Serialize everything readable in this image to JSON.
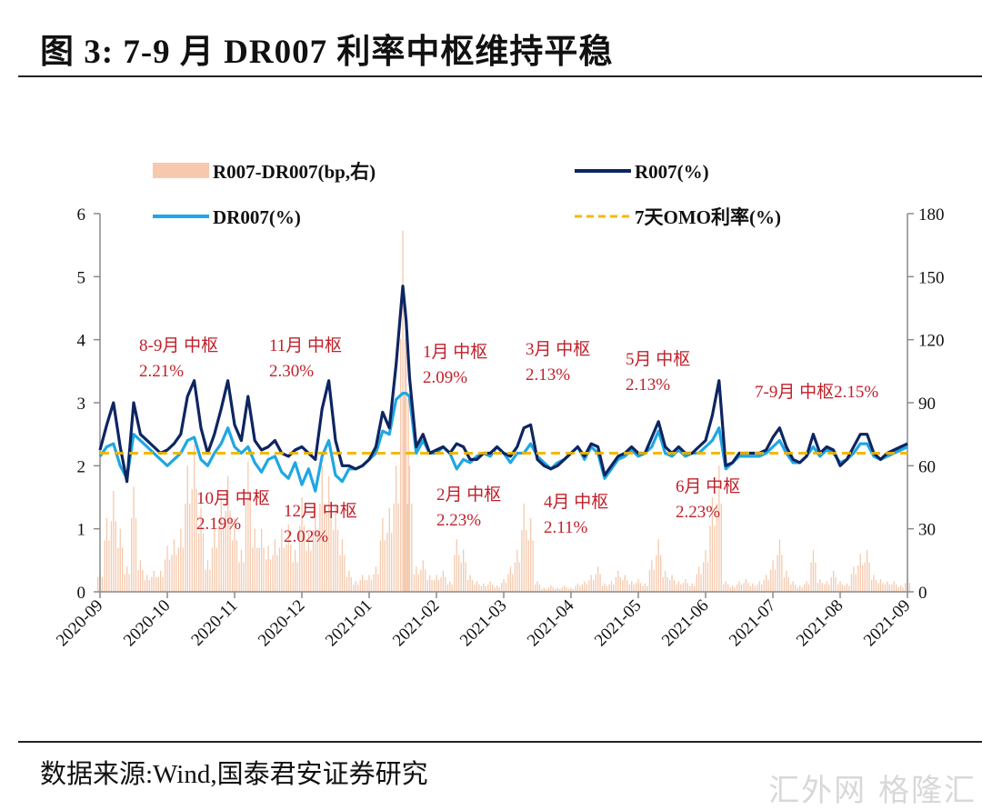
{
  "figure": {
    "title": "图 3:  7-9 月 DR007 利率中枢维持平稳",
    "source": "数据来源:Wind,国泰君安证券研究",
    "watermark": "汇外网 格隆汇"
  },
  "chart_data": {
    "type": "line",
    "title": "7-9 月 DR007 利率中枢维持平稳",
    "xlabel": "",
    "ylabel": "",
    "y_left": {
      "range": [
        0,
        6
      ],
      "ticks": [
        0,
        1,
        2,
        3,
        4,
        5,
        6
      ],
      "unit": "%"
    },
    "y_right": {
      "range": [
        0,
        180
      ],
      "ticks": [
        0,
        30,
        60,
        90,
        120,
        150,
        180
      ],
      "unit": "bp"
    },
    "x_ticks": [
      "2020-09",
      "2020-10",
      "2020-11",
      "2020-12",
      "2021-01",
      "2021-02",
      "2021-03",
      "2021-04",
      "2021-05",
      "2021-06",
      "2021-07",
      "2021-08",
      "2021-09"
    ],
    "grid": false,
    "legend": {
      "position": "top",
      "entries": [
        {
          "label": "R007-DR007(bp,右)",
          "type": "bar",
          "color": "#f6c9ad"
        },
        {
          "label": "R007(%)",
          "type": "line",
          "color": "#0d2561"
        },
        {
          "label": "DR007(%)",
          "type": "line",
          "color": "#1fa7e3"
        },
        {
          "label": "7天OMO利率(%)",
          "type": "dashed-line",
          "color": "#f5b800"
        }
      ]
    },
    "x_month_index": [
      0,
      0.1,
      0.2,
      0.3,
      0.4,
      0.5,
      0.6,
      0.7,
      0.8,
      0.9,
      1.0,
      1.1,
      1.2,
      1.3,
      1.4,
      1.5,
      1.6,
      1.7,
      1.8,
      1.9,
      2.0,
      2.1,
      2.2,
      2.3,
      2.4,
      2.5,
      2.6,
      2.7,
      2.8,
      2.9,
      3.0,
      3.1,
      3.2,
      3.3,
      3.4,
      3.5,
      3.6,
      3.7,
      3.8,
      3.9,
      4.0,
      4.1,
      4.2,
      4.3,
      4.4,
      4.5,
      4.55,
      4.6,
      4.7,
      4.8,
      4.9,
      5.0,
      5.1,
      5.2,
      5.3,
      5.4,
      5.5,
      5.6,
      5.7,
      5.8,
      5.9,
      6.0,
      6.1,
      6.2,
      6.3,
      6.4,
      6.5,
      6.6,
      6.7,
      6.8,
      6.9,
      7.0,
      7.1,
      7.2,
      7.3,
      7.4,
      7.5,
      7.6,
      7.7,
      7.8,
      7.9,
      8.0,
      8.1,
      8.2,
      8.3,
      8.4,
      8.5,
      8.6,
      8.7,
      8.8,
      8.9,
      9.0,
      9.1,
      9.2,
      9.3,
      9.4,
      9.5,
      9.6,
      9.7,
      9.8,
      9.9,
      10.0,
      10.1,
      10.2,
      10.3,
      10.4,
      10.5,
      10.6,
      10.7,
      10.8,
      10.9,
      11.0,
      11.1,
      11.2,
      11.3,
      11.4,
      11.5,
      11.6,
      11.7,
      11.8,
      11.9,
      12.0
    ],
    "series": [
      {
        "name": "R007(%)",
        "axis": "left",
        "values": [
          2.25,
          2.65,
          3.0,
          2.3,
          1.75,
          3.0,
          2.5,
          2.4,
          2.3,
          2.2,
          2.25,
          2.35,
          2.5,
          3.1,
          3.35,
          2.6,
          2.2,
          2.5,
          2.9,
          3.35,
          2.65,
          2.4,
          3.1,
          2.4,
          2.25,
          2.3,
          2.4,
          2.2,
          2.15,
          2.25,
          2.3,
          2.2,
          2.1,
          2.9,
          3.35,
          2.4,
          2.0,
          2.0,
          1.95,
          2.0,
          2.1,
          2.3,
          2.85,
          2.6,
          3.6,
          4.85,
          4.3,
          3.4,
          2.3,
          2.5,
          2.2,
          2.25,
          2.3,
          2.2,
          2.35,
          2.3,
          2.1,
          2.1,
          2.2,
          2.2,
          2.3,
          2.2,
          2.15,
          2.3,
          2.6,
          2.65,
          2.1,
          2.0,
          1.95,
          2.0,
          2.1,
          2.2,
          2.3,
          2.15,
          2.35,
          2.3,
          1.85,
          2.0,
          2.15,
          2.2,
          2.3,
          2.2,
          2.2,
          2.45,
          2.7,
          2.3,
          2.2,
          2.3,
          2.2,
          2.2,
          2.3,
          2.4,
          2.8,
          3.35,
          2.0,
          2.05,
          2.2,
          2.2,
          2.2,
          2.2,
          2.25,
          2.45,
          2.6,
          2.3,
          2.1,
          2.05,
          2.15,
          2.5,
          2.2,
          2.3,
          2.25,
          2.0,
          2.1,
          2.3,
          2.5,
          2.5,
          2.2,
          2.1,
          2.2,
          2.25,
          2.3,
          2.35
        ]
      },
      {
        "name": "DR007(%)",
        "axis": "left",
        "values": [
          2.15,
          2.3,
          2.35,
          2.0,
          1.8,
          2.5,
          2.4,
          2.3,
          2.2,
          2.1,
          2.0,
          2.1,
          2.2,
          2.4,
          2.45,
          2.1,
          2.0,
          2.2,
          2.35,
          2.6,
          2.3,
          2.2,
          2.3,
          2.05,
          1.9,
          2.1,
          2.15,
          1.9,
          1.8,
          2.05,
          1.7,
          1.95,
          1.6,
          2.15,
          2.4,
          1.85,
          1.75,
          1.95,
          1.95,
          2.0,
          2.1,
          2.2,
          2.55,
          2.5,
          3.05,
          3.15,
          3.15,
          3.1,
          2.2,
          2.4,
          2.2,
          2.2,
          2.3,
          2.2,
          1.95,
          2.1,
          2.05,
          2.15,
          2.2,
          2.15,
          2.3,
          2.2,
          2.05,
          2.2,
          2.2,
          2.35,
          2.15,
          2.05,
          1.95,
          2.05,
          2.1,
          2.2,
          2.3,
          2.1,
          2.3,
          2.2,
          1.8,
          1.95,
          2.1,
          2.15,
          2.25,
          2.15,
          2.2,
          2.3,
          2.55,
          2.2,
          2.15,
          2.25,
          2.15,
          2.2,
          2.2,
          2.3,
          2.4,
          2.6,
          1.95,
          2.05,
          2.15,
          2.15,
          2.15,
          2.15,
          2.2,
          2.3,
          2.4,
          2.2,
          2.05,
          2.05,
          2.15,
          2.3,
          2.15,
          2.25,
          2.2,
          2.05,
          2.1,
          2.2,
          2.35,
          2.35,
          2.15,
          2.1,
          2.15,
          2.2,
          2.25,
          2.3
        ]
      },
      {
        "name": "7天OMO利率(%)",
        "axis": "left",
        "constant": 2.2
      },
      {
        "name": "R007-DR007(bp,右)",
        "axis": "right",
        "values": [
          10,
          35,
          48,
          30,
          12,
          50,
          15,
          8,
          10,
          10,
          22,
          25,
          30,
          60,
          70,
          40,
          15,
          30,
          45,
          55,
          35,
          20,
          62,
          30,
          30,
          22,
          25,
          30,
          32,
          20,
          45,
          28,
          42,
          60,
          55,
          42,
          25,
          10,
          5,
          8,
          8,
          12,
          35,
          40,
          60,
          172,
          135,
          60,
          12,
          15,
          8,
          8,
          10,
          5,
          25,
          20,
          8,
          5,
          4,
          5,
          3,
          6,
          12,
          20,
          42,
          35,
          5,
          2,
          3,
          2,
          3,
          2,
          4,
          5,
          8,
          12,
          4,
          5,
          10,
          8,
          5,
          6,
          4,
          15,
          25,
          10,
          8,
          5,
          6,
          4,
          12,
          20,
          45,
          60,
          5,
          3,
          5,
          6,
          4,
          5,
          8,
          15,
          25,
          10,
          5,
          3,
          5,
          20,
          6,
          5,
          10,
          5,
          4,
          12,
          18,
          20,
          8,
          6,
          5,
          5,
          3,
          6
        ]
      }
    ],
    "annotations": [
      {
        "line1": "8-9月 中枢",
        "line2": "2.21%"
      },
      {
        "line1": "10月 中枢",
        "line2": "2.19%"
      },
      {
        "line1": "11月 中枢",
        "line2": "2.30%"
      },
      {
        "line1": "12月 中枢",
        "line2": "2.02%"
      },
      {
        "line1": "1月 中枢",
        "line2": "2.09%"
      },
      {
        "line1": "2月 中枢",
        "line2": "2.23%"
      },
      {
        "line1": "3月 中枢",
        "line2": "2.13%"
      },
      {
        "line1": "4月 中枢",
        "line2": "2.11%"
      },
      {
        "line1": "5月 中枢",
        "line2": "2.13%"
      },
      {
        "line1": "6月 中枢",
        "line2": "2.23%"
      },
      {
        "line1": "7-9月 中枢2.15%",
        "line2": ""
      }
    ]
  }
}
